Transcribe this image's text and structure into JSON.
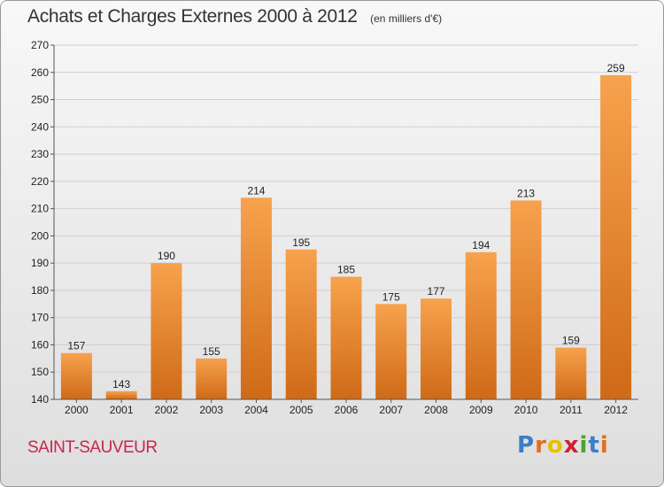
{
  "header": {
    "title": "Achats et Charges Externes 2000 à 2012",
    "subtitle": "(en milliers d'€)"
  },
  "footer": {
    "place": "SAINT-SAUVEUR",
    "logo": "Proxiti",
    "logo_colors": [
      "#3a7fc8",
      "#e07020",
      "#e8c000",
      "#d02030",
      "#50a030",
      "#3a7fc8",
      "#e07020"
    ]
  },
  "colors": {
    "bar_light": "#f7a24e",
    "bar_dark": "#cf6a17",
    "grid": "#cfcfcf",
    "axis": "#555555"
  },
  "chart_data": {
    "type": "bar",
    "title": "Achats et Charges Externes 2000 à 2012",
    "subtitle": "(en milliers d'€)",
    "categories": [
      "2000",
      "2001",
      "2002",
      "2003",
      "2004",
      "2005",
      "2006",
      "2007",
      "2008",
      "2009",
      "2010",
      "2011",
      "2012"
    ],
    "values": [
      157,
      143,
      190,
      155,
      214,
      195,
      185,
      175,
      177,
      194,
      213,
      159,
      259
    ],
    "ylim": [
      140,
      270
    ],
    "yticks": [
      140,
      150,
      160,
      170,
      180,
      190,
      200,
      210,
      220,
      230,
      240,
      250,
      260,
      270
    ],
    "grid": true,
    "data_labels": true
  }
}
